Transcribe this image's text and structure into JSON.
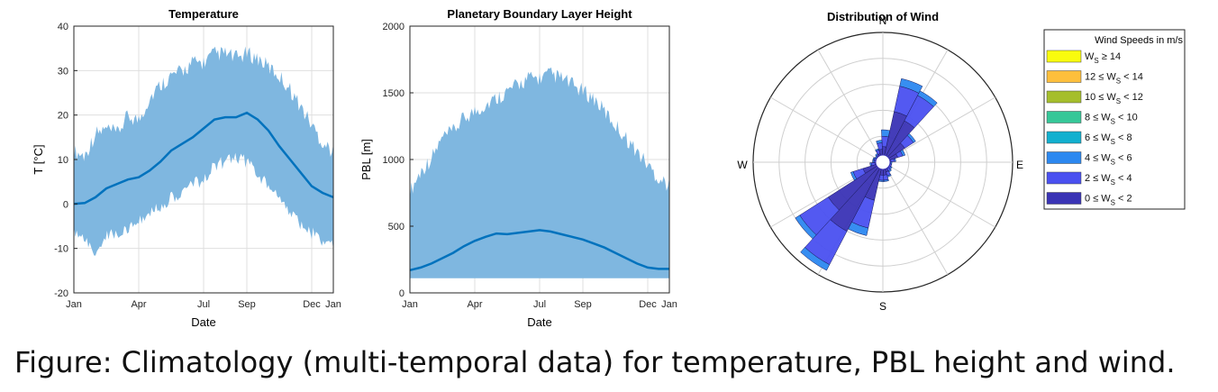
{
  "caption": "Figure: Climatology (multi-temporal data) for temperature, PBL height and wind.",
  "colors": {
    "band": "#7fb7e0",
    "line": "#0072bd",
    "grid": "#dfdfdf"
  },
  "chart_data": [
    {
      "type": "area",
      "title": "Temperature",
      "xlabel": "Date",
      "ylabel": "T [°C]",
      "ylim": [
        -20,
        40
      ],
      "yticks": [
        -20,
        -10,
        0,
        10,
        20,
        30,
        40
      ],
      "xticks": [
        "Jan",
        "Apr",
        "Jul",
        "Sep",
        "Dec",
        "Jan"
      ],
      "x_months": [
        0,
        3,
        6,
        8,
        11,
        12
      ],
      "grid": true,
      "series": [
        {
          "x": [
            0,
            0.5,
            1,
            1.5,
            2,
            2.5,
            3,
            3.5,
            4,
            4.5,
            5,
            5.5,
            6,
            6.5,
            7,
            7.5,
            8,
            8.5,
            9,
            9.5,
            10,
            10.5,
            11,
            11.5,
            12
          ],
          "values": [
            0,
            0.2,
            1.5,
            3.5,
            4.5,
            5.5,
            6,
            7.5,
            9.5,
            12,
            13.5,
            15,
            17,
            19,
            19.5,
            19.5,
            20.5,
            19,
            16.5,
            13,
            10,
            7,
            4,
            2.5,
            1.5
          ]
        }
      ],
      "band_upper": [
        10,
        9,
        14,
        15,
        14,
        18,
        17,
        22,
        25,
        27,
        28,
        30,
        30,
        32,
        32,
        31,
        32,
        31,
        29,
        27,
        24,
        20,
        16,
        12,
        10
      ],
      "band_lower": [
        -5,
        -7,
        -9,
        -6,
        -5,
        -4,
        -2,
        -1,
        1,
        3,
        4,
        6,
        7,
        10,
        11,
        12,
        11,
        8,
        6,
        3,
        0,
        -3,
        -5,
        -7,
        -8
      ]
    },
    {
      "type": "area",
      "title": "Planetary Boundary Layer Height",
      "xlabel": "Date",
      "ylabel": "PBL [m]",
      "ylim": [
        0,
        2000
      ],
      "yticks": [
        0,
        500,
        1000,
        1500,
        2000
      ],
      "xticks": [
        "Jan",
        "Apr",
        "Jul",
        "Sep",
        "Dec",
        "Jan"
      ],
      "x_months": [
        0,
        3,
        6,
        8,
        11,
        12
      ],
      "grid": true,
      "series": [
        {
          "x": [
            0,
            0.5,
            1,
            1.5,
            2,
            2.5,
            3,
            3.5,
            4,
            4.5,
            5,
            5.5,
            6,
            6.5,
            7,
            7.5,
            8,
            8.5,
            9,
            9.5,
            10,
            10.5,
            11,
            11.5,
            12
          ],
          "values": [
            170,
            190,
            220,
            260,
            300,
            350,
            390,
            420,
            445,
            440,
            450,
            460,
            470,
            460,
            440,
            420,
            400,
            370,
            340,
            300,
            260,
            220,
            190,
            180,
            180
          ]
        }
      ],
      "band_upper": [
        700,
        850,
        950,
        1100,
        1150,
        1250,
        1300,
        1350,
        1400,
        1450,
        1500,
        1550,
        1550,
        1580,
        1550,
        1500,
        1450,
        1400,
        1300,
        1200,
        1100,
        1000,
        900,
        800,
        750
      ],
      "band_lower": [
        110,
        110,
        110,
        110,
        110,
        110,
        110,
        110,
        110,
        110,
        110,
        110,
        110,
        110,
        110,
        110,
        110,
        110,
        110,
        110,
        110,
        110,
        110,
        110,
        110
      ]
    },
    {
      "type": "wind-rose",
      "title": "Distribution of Wind",
      "directions": [
        "N",
        "E",
        "S",
        "W"
      ],
      "legend_title": "Wind Speeds in m/s",
      "legend": [
        {
          "parts": [
            "W",
            "S",
            " ≥ 14"
          ],
          "color": "#f9fb0e"
        },
        {
          "parts": [
            "12 ≤ W",
            "S",
            " < 14"
          ],
          "color": "#fdbf3c"
        },
        {
          "parts": [
            "10 ≤ W",
            "S",
            " < 12"
          ],
          "color": "#a5be2c"
        },
        {
          "parts": [
            "8 ≤ W",
            "S",
            " < 10"
          ],
          "color": "#36c798"
        },
        {
          "parts": [
            "6 ≤ W",
            "S",
            " < 8"
          ],
          "color": "#12b0cf"
        },
        {
          "parts": [
            "4 ≤ W",
            "S",
            " < 6"
          ],
          "color": "#2c88f0"
        },
        {
          "parts": [
            "2 ≤ W",
            "S",
            " < 4"
          ],
          "color": "#4a50f0"
        },
        {
          "parts": [
            "0 ≤ W",
            "S",
            " < 2"
          ],
          "color": "#3a33b5"
        }
      ],
      "sector_width_deg": 15,
      "sectors": [
        {
          "dir": 5,
          "r": [
            0.12,
            0.2,
            0.25
          ]
        },
        {
          "dir": 20,
          "r": [
            0.4,
            0.6,
            0.66
          ]
        },
        {
          "dir": 35,
          "r": [
            0.36,
            0.58,
            0.62
          ]
        },
        {
          "dir": 50,
          "r": [
            0.2,
            0.28,
            0.3
          ]
        },
        {
          "dir": 65,
          "r": [
            0.12,
            0.16,
            0.18
          ]
        },
        {
          "dir": 80,
          "r": [
            0.06,
            0.09,
            0.1
          ]
        },
        {
          "dir": 95,
          "r": [
            0.05,
            0.06,
            0.07
          ]
        },
        {
          "dir": 110,
          "r": [
            0.05,
            0.07,
            0.07
          ]
        },
        {
          "dir": 125,
          "r": [
            0.05,
            0.07,
            0.08
          ]
        },
        {
          "dir": 140,
          "r": [
            0.06,
            0.08,
            0.09
          ]
        },
        {
          "dir": 155,
          "r": [
            0.08,
            0.11,
            0.12
          ]
        },
        {
          "dir": 170,
          "r": [
            0.1,
            0.14,
            0.15
          ]
        },
        {
          "dir": 185,
          "r": [
            0.1,
            0.14,
            0.15
          ]
        },
        {
          "dir": 200,
          "r": [
            0.3,
            0.52,
            0.58
          ]
        },
        {
          "dir": 215,
          "r": [
            0.6,
            0.89,
            0.94
          ]
        },
        {
          "dir": 230,
          "r": [
            0.5,
            0.76,
            0.8
          ]
        },
        {
          "dir": 245,
          "r": [
            0.16,
            0.24,
            0.26
          ]
        },
        {
          "dir": 260,
          "r": [
            0.06,
            0.09,
            0.1
          ]
        },
        {
          "dir": 275,
          "r": [
            0.05,
            0.07,
            0.08
          ]
        },
        {
          "dir": 290,
          "r": [
            0.05,
            0.07,
            0.08
          ]
        },
        {
          "dir": 305,
          "r": [
            0.05,
            0.06,
            0.07
          ]
        },
        {
          "dir": 320,
          "r": [
            0.06,
            0.07,
            0.08
          ]
        },
        {
          "dir": 335,
          "r": [
            0.07,
            0.1,
            0.11
          ]
        },
        {
          "dir": 350,
          "r": [
            0.1,
            0.15,
            0.17
          ]
        }
      ],
      "sector_colors": [
        "#3a33b5",
        "#4a50f0",
        "#2c88f0"
      ]
    }
  ]
}
